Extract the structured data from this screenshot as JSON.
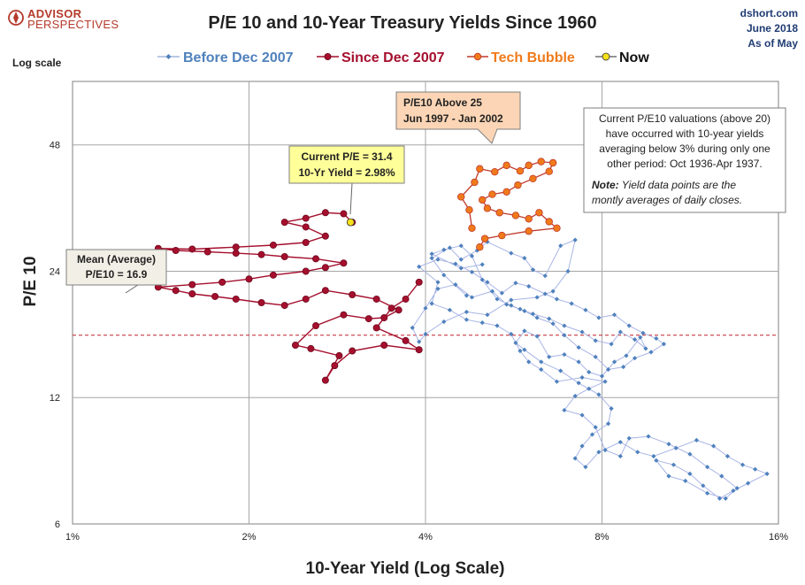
{
  "header": {
    "logo_line1": "ADVISOR",
    "logo_line2": "PERSPECTIVES",
    "title": "P/E 10 and 10-Year Treasury Yields Since 1960",
    "source_line1": "dshort.com",
    "source_line2": "June 2018",
    "source_line3": "As of May"
  },
  "colors": {
    "before": "#4f81bd",
    "since": "#a50f2d",
    "tech": "#f07a1a",
    "now": "#f7e11a",
    "mean_line": "#c0202a",
    "grid": "#a6a6a6"
  },
  "annotations": {
    "mean_line1": "Mean (Average)",
    "mean_line2": "P/E10 = 16.9",
    "current_line1": "Current P/E = 31.4",
    "current_line2": "10-Yr Yield = 2.98%",
    "tech_line1": "P/E10 Above 25",
    "tech_line2": "Jun 1997  - Jan 2002",
    "note_line1": "Current P/E10 valuations  (above 20)",
    "note_line2": "have occurred with 10-year yields",
    "note_line3": "averaging below 3% during only one",
    "note_line4": "other period: Oct 1936-Apr 1937.",
    "note_label": "Note:",
    "note_line5": " Yield data points are the",
    "note_line6": "montly averages of daily closes."
  },
  "chart_data": {
    "type": "scatter",
    "title": "P/E 10 and 10-Year Treasury Yields Since 1960",
    "xlabel": "10-Year Yield (Log Scale)",
    "ylabel": "P/E 10",
    "y_scale_label": "Log scale",
    "x_scale": "log",
    "y_scale": "log",
    "xlim": [
      1,
      16
    ],
    "ylim": [
      6,
      68
    ],
    "x_ticks": [
      1,
      2,
      4,
      8,
      16
    ],
    "x_tick_labels": [
      "1%",
      "2%",
      "4%",
      "8%",
      "16%"
    ],
    "y_ticks": [
      6,
      12,
      24,
      48
    ],
    "y_tick_labels": [
      "6",
      "12",
      "24",
      "48"
    ],
    "grid": true,
    "legend_position": "top",
    "mean_pe10": 16.9,
    "series": [
      {
        "name": "Before Dec 2007",
        "color": "#4f81bd",
        "marker": "diamond",
        "points": [
          [
            4.7,
            21.0
          ],
          [
            4.3,
            23.5
          ],
          [
            4.1,
            25.8
          ],
          [
            4.4,
            27.3
          ],
          [
            4.6,
            25.6
          ],
          [
            4.9,
            26.9
          ],
          [
            5.1,
            28.2
          ],
          [
            5.6,
            26.5
          ],
          [
            5.9,
            25.8
          ],
          [
            6.1,
            24.2
          ],
          [
            6.4,
            23.4
          ],
          [
            6.8,
            27.6
          ],
          [
            7.2,
            28.5
          ],
          [
            7.0,
            24.0
          ],
          [
            6.6,
            21.5
          ],
          [
            6.2,
            20.8
          ],
          [
            5.6,
            20.5
          ],
          [
            5.1,
            18.9
          ],
          [
            4.7,
            19.2
          ],
          [
            4.3,
            18.2
          ],
          [
            4.0,
            17.0
          ],
          [
            3.9,
            16.3
          ],
          [
            3.8,
            17.6
          ],
          [
            4.0,
            19.6
          ],
          [
            4.2,
            21.8
          ],
          [
            4.5,
            22.3
          ],
          [
            4.8,
            20.8
          ],
          [
            5.2,
            21.5
          ],
          [
            5.5,
            20.0
          ],
          [
            5.8,
            19.5
          ],
          [
            6.1,
            19.0
          ],
          [
            6.5,
            18.5
          ],
          [
            6.9,
            17.8
          ],
          [
            7.4,
            17.2
          ],
          [
            7.8,
            16.4
          ],
          [
            8.3,
            16.1
          ],
          [
            8.6,
            17.2
          ],
          [
            9.1,
            16.5
          ],
          [
            9.5,
            15.7
          ],
          [
            9.3,
            16.7
          ],
          [
            8.8,
            15.1
          ],
          [
            8.4,
            14.6
          ],
          [
            8.0,
            13.5
          ],
          [
            7.6,
            13.8
          ],
          [
            7.3,
            14.6
          ],
          [
            6.9,
            15.2
          ],
          [
            6.5,
            15.0
          ],
          [
            6.2,
            16.8
          ],
          [
            5.9,
            17.3
          ],
          [
            5.7,
            16.2
          ],
          [
            5.9,
            15.6
          ],
          [
            6.3,
            14.6
          ],
          [
            6.8,
            13.9
          ],
          [
            7.3,
            13.0
          ],
          [
            7.9,
            12.2
          ],
          [
            8.3,
            11.3
          ],
          [
            8.2,
            10.4
          ],
          [
            7.7,
            9.8
          ],
          [
            7.4,
            9.2
          ],
          [
            7.2,
            8.6
          ],
          [
            7.5,
            8.2
          ],
          [
            7.9,
            8.9
          ],
          [
            8.6,
            9.4
          ],
          [
            9.2,
            8.9
          ],
          [
            9.8,
            8.7
          ],
          [
            10.7,
            9.1
          ],
          [
            11.6,
            9.5
          ],
          [
            12.4,
            9.2
          ],
          [
            13.1,
            8.7
          ],
          [
            13.9,
            8.3
          ],
          [
            14.6,
            8.1
          ],
          [
            15.3,
            7.9
          ],
          [
            14.2,
            7.5
          ],
          [
            13.4,
            7.2
          ],
          [
            12.7,
            6.9
          ],
          [
            11.9,
            7.4
          ],
          [
            11.3,
            7.9
          ],
          [
            10.6,
            8.3
          ],
          [
            9.9,
            8.5
          ],
          [
            10.4,
            7.8
          ],
          [
            11.1,
            7.6
          ],
          [
            12.1,
            7.1
          ],
          [
            13.0,
            6.9
          ],
          [
            13.6,
            7.3
          ],
          [
            12.8,
            7.8
          ],
          [
            12.1,
            8.2
          ],
          [
            11.3,
            8.8
          ],
          [
            10.4,
            9.3
          ],
          [
            9.6,
            9.7
          ],
          [
            8.9,
            9.6
          ],
          [
            8.6,
            8.7
          ],
          [
            8.1,
            9.0
          ],
          [
            7.8,
            10.2
          ],
          [
            7.4,
            10.9
          ],
          [
            6.9,
            11.2
          ],
          [
            7.2,
            12.1
          ],
          [
            7.6,
            12.6
          ],
          [
            8.1,
            13.1
          ],
          [
            7.4,
            13.4
          ],
          [
            6.7,
            13.1
          ],
          [
            6.3,
            14.0
          ],
          [
            6.0,
            14.6
          ],
          [
            5.8,
            15.5
          ],
          [
            5.6,
            17.0
          ],
          [
            5.3,
            17.8
          ],
          [
            5.0,
            18.1
          ],
          [
            4.7,
            18.4
          ],
          [
            4.4,
            19.4
          ],
          [
            4.1,
            20.1
          ],
          [
            4.2,
            22.6
          ],
          [
            3.9,
            24.6
          ],
          [
            4.2,
            25.6
          ],
          [
            4.5,
            25.0
          ],
          [
            4.8,
            23.9
          ],
          [
            5.1,
            22.6
          ],
          [
            5.4,
            21.3
          ],
          [
            5.7,
            22.5
          ],
          [
            6.0,
            22.1
          ],
          [
            6.4,
            21.2
          ],
          [
            6.7,
            20.6
          ],
          [
            7.1,
            20.1
          ],
          [
            7.5,
            19.4
          ],
          [
            7.9,
            18.6
          ],
          [
            8.4,
            18.9
          ],
          [
            8.9,
            17.8
          ],
          [
            9.4,
            17.1
          ],
          [
            9.9,
            16.6
          ],
          [
            10.2,
            16.1
          ],
          [
            9.7,
            15.4
          ],
          [
            9.1,
            14.9
          ],
          [
            8.7,
            14.2
          ],
          [
            8.2,
            14.0
          ],
          [
            7.8,
            15.0
          ],
          [
            7.3,
            15.8
          ],
          [
            6.9,
            16.9
          ],
          [
            6.6,
            18.0
          ],
          [
            6.2,
            18.6
          ],
          [
            5.9,
            19.3
          ],
          [
            5.6,
            19.9
          ],
          [
            5.3,
            20.6
          ],
          [
            5.0,
            22.9
          ],
          [
            4.8,
            26.1
          ],
          [
            4.6,
            27.6
          ],
          [
            4.3,
            27.0
          ],
          [
            4.1,
            26.4
          ],
          [
            4.6,
            24.4
          ],
          [
            5.0,
            24.9
          ]
        ]
      },
      {
        "name": "Since Dec 2007",
        "color": "#a50f2d",
        "marker": "circle",
        "points": [
          [
            3.9,
            22.6
          ],
          [
            3.7,
            20.6
          ],
          [
            3.5,
            19.6
          ],
          [
            3.3,
            17.6
          ],
          [
            3.7,
            16.4
          ],
          [
            3.9,
            15.6
          ],
          [
            3.4,
            16.0
          ],
          [
            3.0,
            15.5
          ],
          [
            2.8,
            14.3
          ],
          [
            2.7,
            13.2
          ],
          [
            2.85,
            15.1
          ],
          [
            2.55,
            15.7
          ],
          [
            2.4,
            16.0
          ],
          [
            2.6,
            17.8
          ],
          [
            2.9,
            18.9
          ],
          [
            3.2,
            18.5
          ],
          [
            3.4,
            18.6
          ],
          [
            3.6,
            19.4
          ],
          [
            3.3,
            20.6
          ],
          [
            3.0,
            21.1
          ],
          [
            2.7,
            21.6
          ],
          [
            2.5,
            20.6
          ],
          [
            2.3,
            19.9
          ],
          [
            2.1,
            20.2
          ],
          [
            1.9,
            20.6
          ],
          [
            1.75,
            20.9
          ],
          [
            1.6,
            21.2
          ],
          [
            1.5,
            21.6
          ],
          [
            1.4,
            22.0
          ],
          [
            1.6,
            22.3
          ],
          [
            1.8,
            22.6
          ],
          [
            2.0,
            23.0
          ],
          [
            2.2,
            23.5
          ],
          [
            2.5,
            24.0
          ],
          [
            2.7,
            24.5
          ],
          [
            2.9,
            25.1
          ],
          [
            2.6,
            25.7
          ],
          [
            2.3,
            26.0
          ],
          [
            2.1,
            26.3
          ],
          [
            1.9,
            26.5
          ],
          [
            1.7,
            26.7
          ],
          [
            1.5,
            26.9
          ],
          [
            1.4,
            27.2
          ],
          [
            1.6,
            27.1
          ],
          [
            1.9,
            27.4
          ],
          [
            2.2,
            27.7
          ],
          [
            2.5,
            28.1
          ],
          [
            2.7,
            29.1
          ],
          [
            2.5,
            30.6
          ],
          [
            2.3,
            31.4
          ],
          [
            2.5,
            32.1
          ],
          [
            2.7,
            33.1
          ],
          [
            2.9,
            32.9
          ],
          [
            3.0,
            31.4
          ]
        ]
      },
      {
        "name": "Tech Bubble",
        "color": "#f07a1a",
        "marker": "circle",
        "points": [
          [
            4.8,
            30.4
          ],
          [
            4.75,
            33.6
          ],
          [
            4.6,
            36.1
          ],
          [
            4.85,
            39.1
          ],
          [
            4.95,
            42.1
          ],
          [
            5.25,
            41.4
          ],
          [
            5.5,
            42.9
          ],
          [
            5.8,
            41.6
          ],
          [
            6.0,
            42.9
          ],
          [
            6.3,
            43.8
          ],
          [
            6.6,
            43.5
          ],
          [
            6.5,
            41.5
          ],
          [
            6.1,
            39.9
          ],
          [
            5.75,
            38.5
          ],
          [
            5.5,
            37.1
          ],
          [
            5.2,
            36.6
          ],
          [
            5.0,
            35.5
          ],
          [
            5.1,
            33.9
          ],
          [
            5.35,
            33.1
          ],
          [
            5.7,
            32.6
          ],
          [
            6.0,
            32.0
          ],
          [
            6.25,
            33.1
          ],
          [
            6.5,
            31.5
          ],
          [
            6.7,
            30.4
          ],
          [
            6.0,
            29.9
          ],
          [
            5.4,
            29.2
          ],
          [
            5.05,
            28.7
          ],
          [
            4.95,
            27.4
          ]
        ]
      },
      {
        "name": "Now",
        "color": "#f7e11a",
        "marker": "circle",
        "points": [
          [
            2.98,
            31.4
          ]
        ]
      }
    ]
  }
}
